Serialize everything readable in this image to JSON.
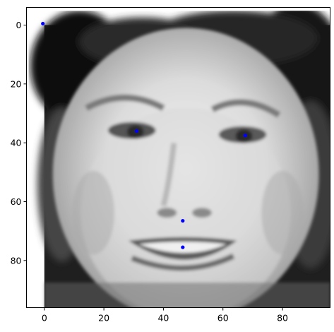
{
  "chart_data": {
    "type": "scatter",
    "title": "",
    "xlabel": "",
    "ylabel": "",
    "xlim": [
      -6,
      96
    ],
    "ylim": [
      96,
      -6
    ],
    "y_inverted": true,
    "image_extent": [
      0,
      96,
      0,
      96
    ],
    "image_description": "grayscale face photo",
    "grid": false,
    "legend": "none",
    "x_ticks": [
      0,
      20,
      40,
      60,
      80
    ],
    "y_ticks": [
      0,
      20,
      40,
      60,
      80
    ],
    "series": [
      {
        "marker": "circle",
        "color": "#0000ff",
        "points": [
          {
            "x": -0.5,
            "y": -0.5
          },
          {
            "x": 31,
            "y": 36
          },
          {
            "x": 67.5,
            "y": 37.5
          },
          {
            "x": 46.5,
            "y": 66.5
          },
          {
            "x": 46.5,
            "y": 75.5
          }
        ]
      }
    ],
    "colors": {
      "axis": "#000000",
      "marker": "#0000ff",
      "background": "#ffffff"
    }
  }
}
